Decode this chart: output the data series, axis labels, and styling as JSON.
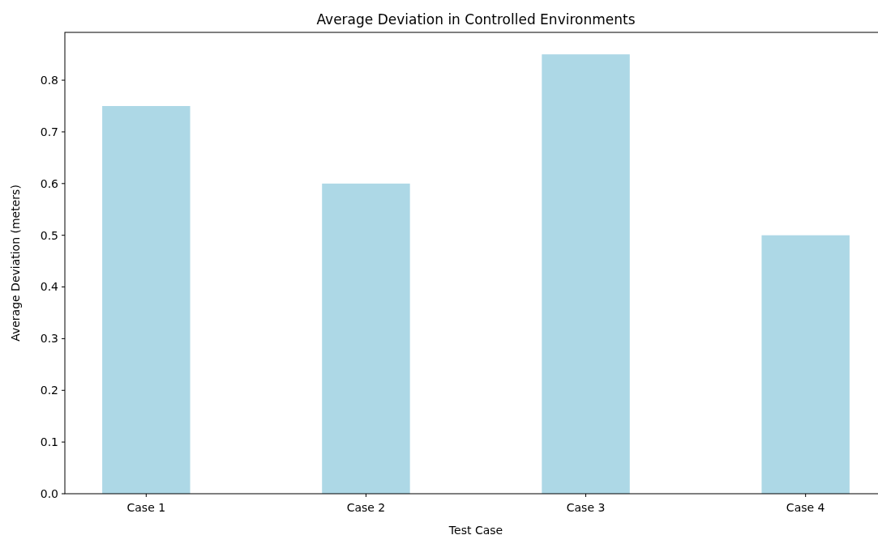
{
  "chart_data": {
    "type": "bar",
    "title": "Average Deviation in Controlled Environments",
    "xlabel": "Test Case",
    "ylabel": "Average Deviation (meters)",
    "categories": [
      "Case 1",
      "Case 2",
      "Case 3",
      "Case 4"
    ],
    "values": [
      0.75,
      0.6,
      0.85,
      0.5
    ],
    "color": "#add8e6",
    "ylim": [
      0,
      0.8925
    ],
    "yticks": [
      {
        "value": 0,
        "label": "0.0"
      },
      0.1,
      0.2,
      0.3,
      0.4,
      0.5,
      0.6,
      0.7,
      0.8
    ]
  }
}
